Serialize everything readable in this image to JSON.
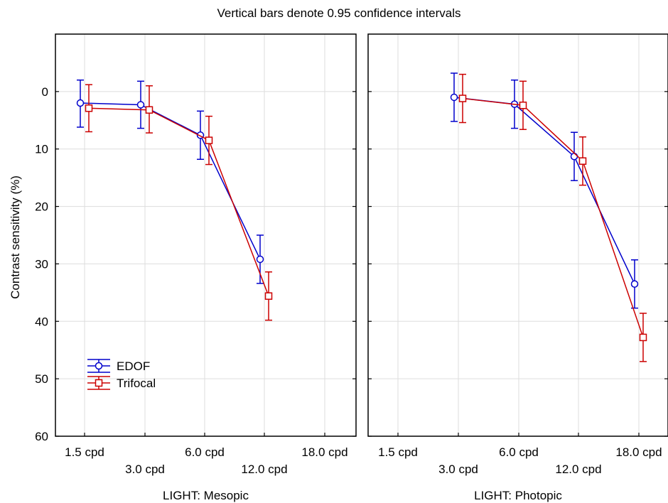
{
  "chart_data": {
    "type": "line",
    "title": "Vertical bars denote 0.95 confidence intervals",
    "ylabel": "Contrast sensitivity (%)",
    "ylim": [
      60,
      -10
    ],
    "yticks": [
      0,
      10,
      20,
      30,
      40,
      50,
      60
    ],
    "y_inverted": true,
    "grid": true,
    "categories": [
      "1.5 cpd",
      "3.0 cpd",
      "6.0 cpd",
      "12.0 cpd",
      "18.0 cpd"
    ],
    "legend_position": "bottom-left",
    "panels": [
      {
        "xlabel": "LIGHT: Mesopic",
        "series": [
          {
            "name": "EDOF",
            "color": "#0000cc",
            "marker": "circle",
            "values": [
              2.0,
              2.3,
              7.6,
              29.2,
              null
            ],
            "ci_low": [
              -2.0,
              -1.8,
              3.4,
              25.0,
              null
            ],
            "ci_high": [
              6.2,
              6.4,
              11.8,
              33.4,
              null
            ]
          },
          {
            "name": "Trifocal",
            "color": "#cc0000",
            "marker": "square",
            "values": [
              2.9,
              3.2,
              8.5,
              35.6,
              null
            ],
            "ci_low": [
              -1.2,
              -1.0,
              4.3,
              31.4,
              null
            ],
            "ci_high": [
              7.0,
              7.2,
              12.7,
              39.8,
              null
            ]
          }
        ]
      },
      {
        "xlabel": "LIGHT: Photopic",
        "series": [
          {
            "name": "EDOF",
            "color": "#0000cc",
            "marker": "circle",
            "values": [
              null,
              1.0,
              2.2,
              11.3,
              33.5
            ],
            "ci_low": [
              null,
              -3.2,
              -2.0,
              7.1,
              29.3
            ],
            "ci_high": [
              null,
              5.2,
              6.4,
              15.5,
              37.7
            ]
          },
          {
            "name": "Trifocal",
            "color": "#cc0000",
            "marker": "square",
            "values": [
              null,
              1.2,
              2.4,
              12.1,
              42.8
            ],
            "ci_low": [
              null,
              -3.0,
              -1.8,
              7.9,
              38.6
            ],
            "ci_high": [
              null,
              5.4,
              6.6,
              16.3,
              47.0
            ]
          }
        ]
      }
    ]
  }
}
